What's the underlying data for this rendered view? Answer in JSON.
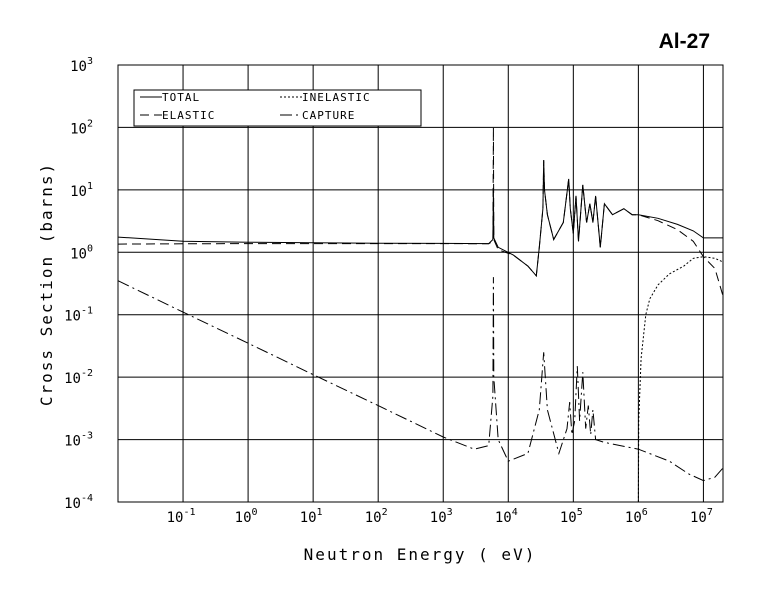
{
  "chart_data": {
    "type": "line",
    "title": "Al-27",
    "xlabel": "Neutron Energy ( eV)",
    "ylabel": "Cross Section (barns)",
    "x_scale": "log",
    "y_scale": "log",
    "xlim": [
      0.01,
      20000000
    ],
    "ylim": [
      0.0001,
      1000
    ],
    "grid": true,
    "legend_position": "top-left",
    "x_ticks": [
      {
        "base": "10",
        "exp": "-1",
        "value": 0.1
      },
      {
        "base": "10",
        "exp": "0",
        "value": 1
      },
      {
        "base": "10",
        "exp": "1",
        "value": 10
      },
      {
        "base": "10",
        "exp": "2",
        "value": 100
      },
      {
        "base": "10",
        "exp": "3",
        "value": 1000
      },
      {
        "base": "10",
        "exp": "4",
        "value": 10000
      },
      {
        "base": "10",
        "exp": "5",
        "value": 100000
      },
      {
        "base": "10",
        "exp": "6",
        "value": 1000000
      },
      {
        "base": "10",
        "exp": "7",
        "value": 10000000
      }
    ],
    "y_ticks": [
      {
        "base": "10",
        "exp": "3",
        "value": 1000
      },
      {
        "base": "10",
        "exp": "2",
        "value": 100
      },
      {
        "base": "10",
        "exp": "1",
        "value": 10
      },
      {
        "base": "10",
        "exp": "0",
        "value": 1
      },
      {
        "base": "10",
        "exp": "-1",
        "value": 0.1
      },
      {
        "base": "10",
        "exp": "-2",
        "value": 0.01
      },
      {
        "base": "10",
        "exp": "-3",
        "value": 0.001
      },
      {
        "base": "10",
        "exp": "-4",
        "value": 0.0001
      }
    ],
    "series": [
      {
        "name": "TOTAL",
        "dash": "solid",
        "points": [
          [
            0.01,
            1.75
          ],
          [
            0.1,
            1.5
          ],
          [
            1,
            1.45
          ],
          [
            10,
            1.42
          ],
          [
            100,
            1.4
          ],
          [
            1000,
            1.39
          ],
          [
            5000,
            1.38
          ],
          [
            5800,
            1.6
          ],
          [
            5900,
            10
          ],
          [
            6000,
            1.7
          ],
          [
            7000,
            1.2
          ],
          [
            12000,
            0.9
          ],
          [
            20000,
            0.6
          ],
          [
            27000,
            0.42
          ],
          [
            30000,
            1.2
          ],
          [
            34000,
            5
          ],
          [
            35000,
            30
          ],
          [
            36000,
            10
          ],
          [
            40000,
            4
          ],
          [
            50000,
            1.6
          ],
          [
            70000,
            3
          ],
          [
            85000,
            15
          ],
          [
            90000,
            5
          ],
          [
            100000,
            2
          ],
          [
            110000,
            8
          ],
          [
            120000,
            1.5
          ],
          [
            140000,
            12
          ],
          [
            160000,
            3
          ],
          [
            180000,
            6
          ],
          [
            200000,
            3
          ],
          [
            220000,
            8
          ],
          [
            260000,
            1.2
          ],
          [
            300000,
            6
          ],
          [
            400000,
            4
          ],
          [
            600000,
            5
          ],
          [
            800000,
            4
          ],
          [
            1000000,
            4
          ],
          [
            2000000,
            3.5
          ],
          [
            4000000,
            2.8
          ],
          [
            7000000,
            2.2
          ],
          [
            10000000,
            1.7
          ],
          [
            20000000,
            1.7
          ]
        ]
      },
      {
        "name": "ELASTIC",
        "dash": "dashed",
        "points": [
          [
            0.01,
            1.35
          ],
          [
            0.1,
            1.37
          ],
          [
            1,
            1.38
          ],
          [
            10,
            1.38
          ],
          [
            100,
            1.38
          ],
          [
            1000,
            1.38
          ],
          [
            5000,
            1.37
          ],
          [
            5800,
            1.5
          ],
          [
            5900,
            100
          ],
          [
            6000,
            1.6
          ],
          [
            7000,
            1.1
          ],
          [
            12000,
            0.9
          ],
          [
            20000,
            0.6
          ],
          [
            27000,
            0.42
          ],
          [
            30000,
            1.2
          ],
          [
            34000,
            5
          ],
          [
            35000,
            30
          ],
          [
            36000,
            10
          ],
          [
            40000,
            4
          ],
          [
            50000,
            1.6
          ],
          [
            70000,
            3
          ],
          [
            85000,
            15
          ],
          [
            90000,
            5
          ],
          [
            100000,
            2
          ],
          [
            110000,
            8
          ],
          [
            120000,
            1.5
          ],
          [
            140000,
            12
          ],
          [
            160000,
            3
          ],
          [
            180000,
            6
          ],
          [
            200000,
            3
          ],
          [
            220000,
            8
          ],
          [
            260000,
            1.2
          ],
          [
            300000,
            6
          ],
          [
            400000,
            4
          ],
          [
            600000,
            5
          ],
          [
            800000,
            4
          ],
          [
            1000000,
            4
          ],
          [
            2000000,
            3.2
          ],
          [
            4000000,
            2.3
          ],
          [
            7000000,
            1.5
          ],
          [
            10000000,
            0.85
          ],
          [
            15000000,
            0.55
          ],
          [
            20000000,
            0.2
          ]
        ]
      },
      {
        "name": "INELASTIC",
        "dash": "dotted",
        "points": [
          [
            1000000,
            5e-05
          ],
          [
            1010000,
            0.002
          ],
          [
            1100000,
            0.02
          ],
          [
            1300000,
            0.1
          ],
          [
            1500000,
            0.18
          ],
          [
            2000000,
            0.3
          ],
          [
            3000000,
            0.45
          ],
          [
            5000000,
            0.6
          ],
          [
            7000000,
            0.8
          ],
          [
            10000000,
            0.85
          ],
          [
            15000000,
            0.8
          ],
          [
            20000000,
            0.7
          ]
        ]
      },
      {
        "name": "CAPTURE",
        "dash": "dashdot",
        "points": [
          [
            0.01,
            0.35
          ],
          [
            0.1,
            0.11
          ],
          [
            1,
            0.035
          ],
          [
            10,
            0.011
          ],
          [
            100,
            0.0035
          ],
          [
            1000,
            0.0011
          ],
          [
            3000,
            0.0007
          ],
          [
            5000,
            0.0008
          ],
          [
            5800,
            0.005
          ],
          [
            5900,
            0.4
          ],
          [
            6000,
            0.01
          ],
          [
            7000,
            0.001
          ],
          [
            10000,
            0.00045
          ],
          [
            20000,
            0.0006
          ],
          [
            30000,
            0.003
          ],
          [
            35000,
            0.025
          ],
          [
            40000,
            0.003
          ],
          [
            60000,
            0.0006
          ],
          [
            80000,
            0.0015
          ],
          [
            88000,
            0.004
          ],
          [
            95000,
            0.0012
          ],
          [
            105000,
            0.002
          ],
          [
            115000,
            0.015
          ],
          [
            125000,
            0.002
          ],
          [
            140000,
            0.012
          ],
          [
            155000,
            0.0015
          ],
          [
            170000,
            0.0035
          ],
          [
            185000,
            0.0012
          ],
          [
            200000,
            0.003
          ],
          [
            220000,
            0.001
          ],
          [
            300000,
            0.0009
          ],
          [
            1000000,
            0.0007
          ],
          [
            3000000,
            0.00045
          ],
          [
            6000000,
            0.00028
          ],
          [
            10000000,
            0.00022
          ],
          [
            15000000,
            0.00025
          ],
          [
            20000000,
            0.00035
          ]
        ]
      }
    ]
  }
}
